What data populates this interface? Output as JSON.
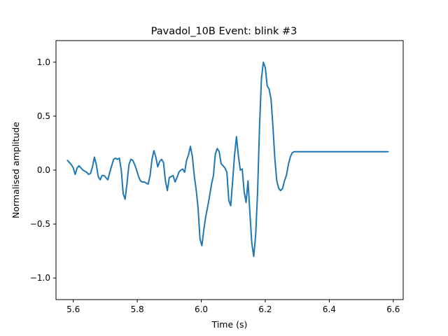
{
  "chart_data": {
    "type": "line",
    "title": "Pavadol_10B Event: blink #3",
    "xlabel": "Time (s)",
    "ylabel": "Normalised amplitude",
    "xlim": [
      5.546,
      6.631
    ],
    "ylim": [
      -1.2,
      1.2
    ],
    "x_ticks": [
      5.6,
      5.8,
      6.0,
      6.2,
      6.4,
      6.6
    ],
    "x_tick_labels": [
      "5.6",
      "5.8",
      "6.0",
      "6.2",
      "6.4",
      "6.6"
    ],
    "y_ticks": [
      1.0,
      0.5,
      0.0,
      -0.5,
      -1.0
    ],
    "y_tick_labels": [
      "1.0",
      "0.5",
      "0.0",
      "−0.5",
      "−1.0"
    ],
    "grid": false,
    "series": [
      {
        "color": "#1f77b4",
        "x": [
          5.582,
          5.588,
          5.594,
          5.6,
          5.606,
          5.612,
          5.618,
          5.624,
          5.63,
          5.636,
          5.642,
          5.648,
          5.654,
          5.66,
          5.666,
          5.672,
          5.678,
          5.684,
          5.69,
          5.696,
          5.702,
          5.708,
          5.714,
          5.72,
          5.726,
          5.732,
          5.738,
          5.744,
          5.75,
          5.756,
          5.762,
          5.768,
          5.774,
          5.78,
          5.786,
          5.792,
          5.798,
          5.804,
          5.81,
          5.816,
          5.822,
          5.828,
          5.834,
          5.84,
          5.846,
          5.852,
          5.858,
          5.864,
          5.87,
          5.876,
          5.882,
          5.888,
          5.894,
          5.9,
          5.906,
          5.912,
          5.918,
          5.924,
          5.93,
          5.936,
          5.942,
          5.948,
          5.954,
          5.96,
          5.966,
          5.972,
          5.978,
          5.984,
          5.99,
          5.996,
          6.002,
          6.008,
          6.014,
          6.02,
          6.026,
          6.032,
          6.038,
          6.044,
          6.05,
          6.056,
          6.062,
          6.068,
          6.074,
          6.08,
          6.086,
          6.092,
          6.098,
          6.104,
          6.11,
          6.116,
          6.122,
          6.128,
          6.134,
          6.14,
          6.146,
          6.152,
          6.158,
          6.164,
          6.17,
          6.176,
          6.182,
          6.188,
          6.194,
          6.2,
          6.206,
          6.212,
          6.218,
          6.224,
          6.23,
          6.236,
          6.242,
          6.248,
          6.254,
          6.26,
          6.266,
          6.272,
          6.278,
          6.284,
          6.29,
          6.296,
          6.302,
          6.308,
          6.314,
          6.32,
          6.326,
          6.332,
          6.338,
          6.344,
          6.35,
          6.356,
          6.362,
          6.368,
          6.374,
          6.38,
          6.386,
          6.392,
          6.398,
          6.404,
          6.41,
          6.416,
          6.422,
          6.428,
          6.434,
          6.44,
          6.446,
          6.452,
          6.458,
          6.464,
          6.47,
          6.476,
          6.482,
          6.488,
          6.494,
          6.5,
          6.506,
          6.512,
          6.518,
          6.524,
          6.53,
          6.536,
          6.542,
          6.548,
          6.554,
          6.56,
          6.566,
          6.572,
          6.578,
          6.584
        ],
        "y": [
          0.09,
          0.07,
          0.05,
          0.02,
          -0.04,
          0.02,
          0.04,
          0.02,
          0.0,
          -0.01,
          -0.02,
          -0.04,
          -0.03,
          0.03,
          0.12,
          0.05,
          -0.06,
          -0.09,
          -0.05,
          -0.05,
          -0.07,
          -0.09,
          -0.02,
          0.04,
          0.1,
          0.11,
          0.1,
          0.11,
          0.0,
          -0.22,
          -0.27,
          -0.12,
          0.05,
          0.1,
          0.09,
          0.05,
          0.0,
          -0.06,
          -0.1,
          -0.11,
          -0.11,
          -0.12,
          -0.13,
          -0.05,
          0.1,
          0.18,
          0.12,
          0.03,
          0.08,
          0.1,
          0.07,
          -0.1,
          -0.19,
          -0.07,
          -0.06,
          -0.05,
          -0.11,
          -0.07,
          -0.02,
          0.0,
          0.01,
          -0.02,
          0.09,
          0.14,
          0.22,
          0.13,
          -0.05,
          -0.18,
          -0.35,
          -0.64,
          -0.7,
          -0.55,
          -0.43,
          -0.34,
          -0.24,
          -0.13,
          -0.05,
          0.15,
          0.2,
          0.17,
          0.06,
          0.04,
          0.02,
          -0.02,
          -0.28,
          -0.33,
          -0.1,
          0.14,
          0.31,
          0.13,
          0.0,
          0.01,
          -0.2,
          -0.3,
          -0.1,
          -0.4,
          -0.68,
          -0.8,
          -0.6,
          -0.2,
          0.4,
          0.85,
          1.0,
          0.95,
          0.78,
          0.75,
          0.66,
          0.4,
          0.1,
          -0.1,
          -0.17,
          -0.19,
          -0.17,
          -0.1,
          -0.05,
          0.05,
          0.12,
          0.16,
          0.17,
          0.17,
          0.17,
          0.17,
          0.17,
          0.17,
          0.17,
          0.17,
          0.17,
          0.17,
          0.17,
          0.17,
          0.17,
          0.17,
          0.17,
          0.17,
          0.17,
          0.17,
          0.17,
          0.17,
          0.17,
          0.17,
          0.17,
          0.17,
          0.17,
          0.17,
          0.17,
          0.17,
          0.17,
          0.17,
          0.17,
          0.17,
          0.17,
          0.17,
          0.17,
          0.17,
          0.17,
          0.17,
          0.17,
          0.17,
          0.17,
          0.17,
          0.17,
          0.17,
          0.17,
          0.17,
          0.17,
          0.17,
          0.17,
          0.17
        ]
      }
    ]
  }
}
